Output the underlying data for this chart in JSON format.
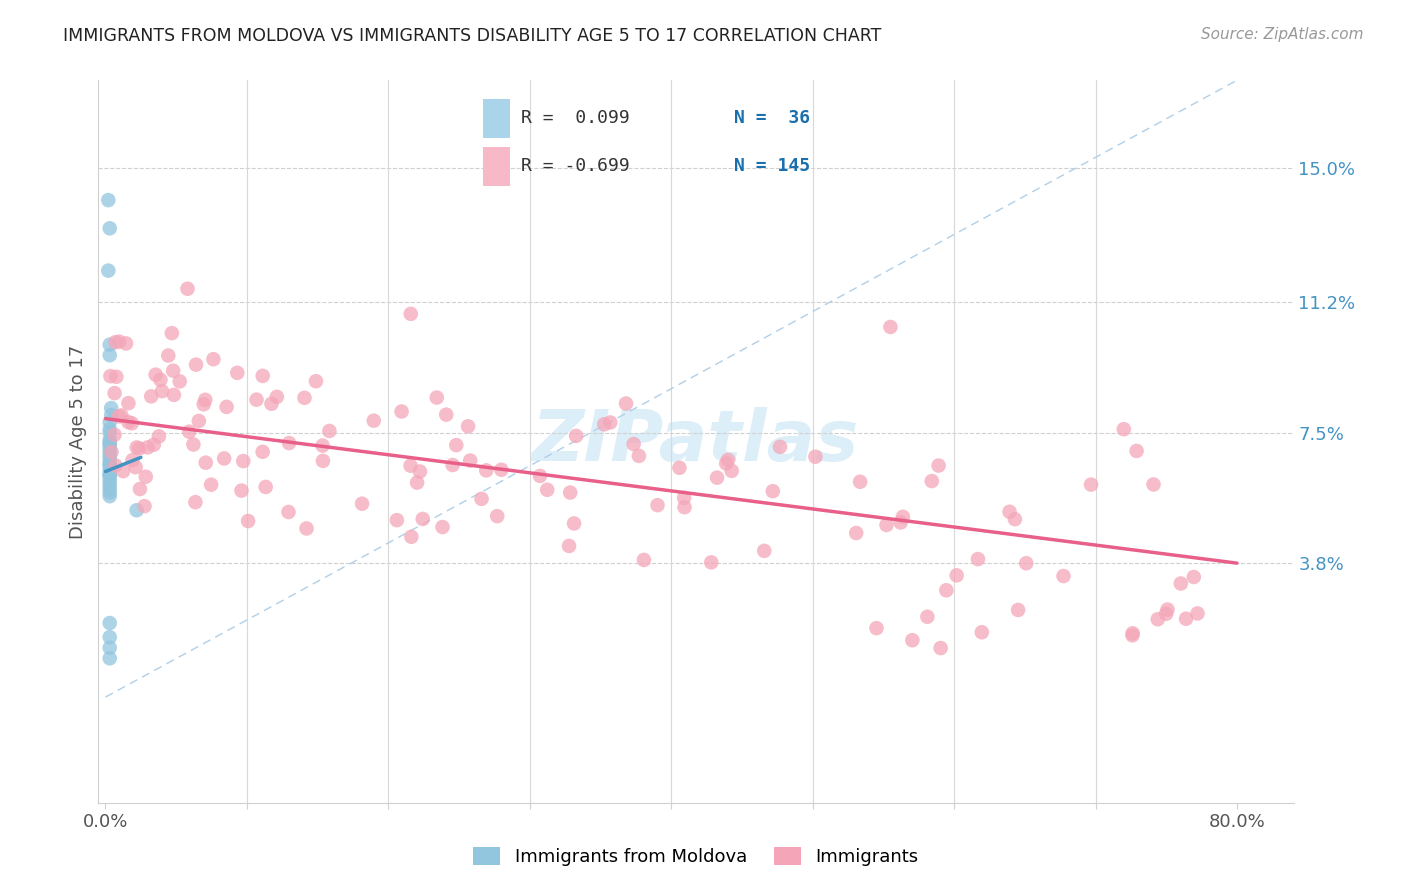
{
  "title": "IMMIGRANTS FROM MOLDOVA VS IMMIGRANTS DISABILITY AGE 5 TO 17 CORRELATION CHART",
  "source": "Source: ZipAtlas.com",
  "ylabel": "Disability Age 5 to 17",
  "xlim": [
    -0.005,
    0.84
  ],
  "ylim": [
    -0.03,
    0.175
  ],
  "ytick_vals": [
    0.038,
    0.075,
    0.112,
    0.15
  ],
  "ytick_labels": [
    "3.8%",
    "7.5%",
    "11.2%",
    "15.0%"
  ],
  "xtick_vals": [
    0.0,
    0.1,
    0.2,
    0.3,
    0.4,
    0.5,
    0.6,
    0.7,
    0.8
  ],
  "xtick_labels": [
    "0.0%",
    "",
    "",
    "",
    "",
    "",
    "",
    "",
    "80.0%"
  ],
  "blue_color": "#92c5de",
  "pink_color": "#f4a6b8",
  "blue_line_color": "#4393c3",
  "pink_line_color": "#e8608a",
  "dashed_line_color": "#b0cfe8",
  "legend_blue_fill": "#aad4ea",
  "legend_pink_fill": "#f7b8c8",
  "watermark_color": "#dceef8",
  "blue_r": "R =  0.099",
  "blue_n": "N =  36",
  "pink_r": "R = -0.699",
  "pink_n": "N = 145",
  "blue_x": [
    0.002,
    0.003,
    0.002,
    0.003,
    0.003,
    0.004,
    0.004,
    0.003,
    0.003,
    0.003,
    0.003,
    0.003,
    0.003,
    0.003,
    0.003,
    0.003,
    0.003,
    0.003,
    0.003,
    0.003,
    0.003,
    0.003,
    0.003,
    0.003,
    0.003,
    0.003,
    0.003,
    0.003,
    0.003,
    0.003,
    0.003,
    0.022,
    0.003,
    0.003,
    0.003,
    0.003
  ],
  "blue_y": [
    0.141,
    0.133,
    0.121,
    0.1,
    0.097,
    0.082,
    0.08,
    0.078,
    0.076,
    0.075,
    0.073,
    0.072,
    0.072,
    0.071,
    0.07,
    0.069,
    0.068,
    0.067,
    0.066,
    0.066,
    0.065,
    0.064,
    0.063,
    0.063,
    0.063,
    0.062,
    0.061,
    0.06,
    0.059,
    0.058,
    0.057,
    0.053,
    0.021,
    0.017,
    0.014,
    0.011
  ],
  "blue_line_x": [
    0.0,
    0.025
  ],
  "blue_line_y": [
    0.064,
    0.068
  ],
  "pink_line_x": [
    0.0,
    0.8
  ],
  "pink_line_y": [
    0.079,
    0.038
  ],
  "dash_line_x": [
    0.0,
    0.8
  ],
  "dash_line_y": [
    0.0,
    0.175
  ]
}
